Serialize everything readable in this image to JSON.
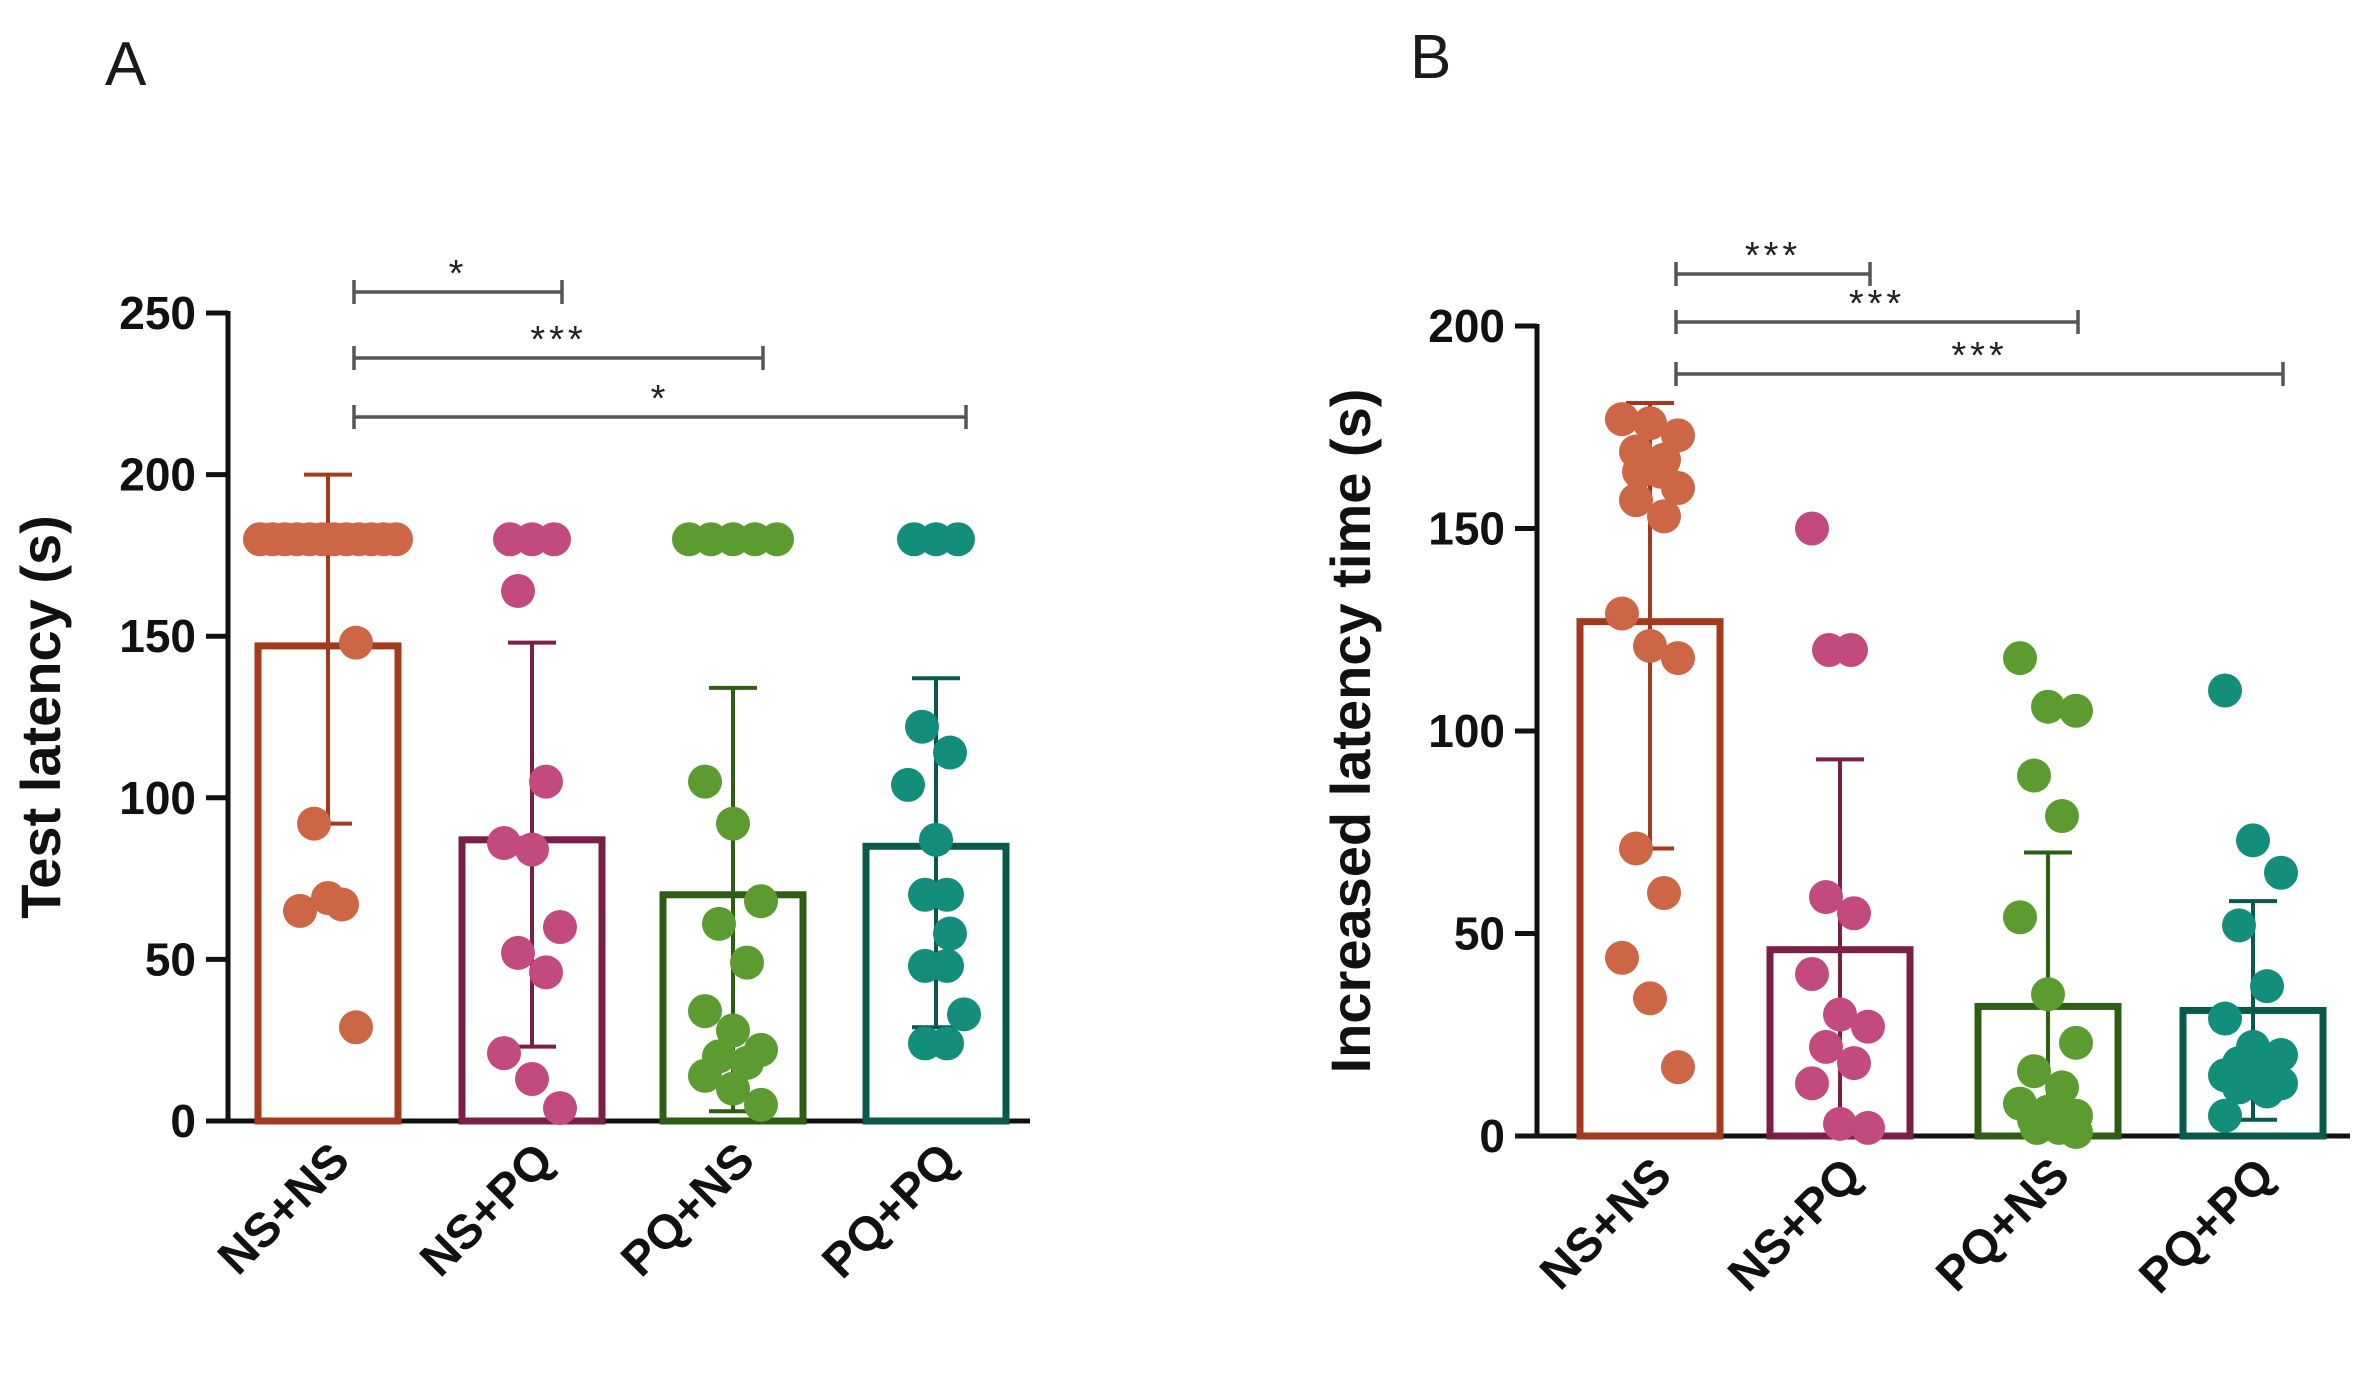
{
  "panels": [
    {
      "letter": "A",
      "chart_data": {
        "type": "bar",
        "categories": [
          "NS+NS",
          "NS+PQ",
          "PQ+NS",
          "PQ+PQ"
        ],
        "ylabel": "Test latency (s)",
        "ylim": [
          0,
          250
        ],
        "yticks": [
          0,
          50,
          100,
          150,
          200,
          250
        ],
        "grid": false,
        "bars": [
          {
            "category": "NS+NS",
            "mean": 147,
            "sd_low": 92,
            "sd_high": 200,
            "color": "#a33a1e",
            "point_color": "#cc6644",
            "points": [
              180,
              180,
              180,
              180,
              180,
              180,
              180,
              180,
              180,
              180,
              180,
              180,
              148,
              92,
              67,
              65,
              69,
              29
            ]
          },
          {
            "category": "NS+PQ",
            "mean": 87,
            "sd_low": 23,
            "sd_high": 148,
            "color": "#7a1f48",
            "point_color": "#c24a7e",
            "points": [
              180,
              180,
              180,
              164,
              105,
              86,
              84,
              60,
              52,
              46,
              21,
              13,
              4
            ]
          },
          {
            "category": "PQ+NS",
            "mean": 70,
            "sd_low": 3,
            "sd_high": 134,
            "color": "#2e5d14",
            "point_color": "#5b9b2f",
            "points": [
              180,
              180,
              180,
              180,
              180,
              105,
              92,
              68,
              61,
              49,
              34,
              28,
              22,
              20,
              18,
              14,
              10,
              5
            ]
          },
          {
            "category": "PQ+PQ",
            "mean": 85,
            "sd_low": 29,
            "sd_high": 137,
            "color": "#0a5a4c",
            "point_color": "#138e7a",
            "points": [
              180,
              180,
              180,
              122,
              114,
              104,
              87,
              70,
              70,
              58,
              48,
              48,
              33,
              24,
              24
            ]
          }
        ],
        "significance": [
          {
            "from": "NS+NS",
            "to": "NS+PQ",
            "label": "*"
          },
          {
            "from": "NS+NS",
            "to": "PQ+NS",
            "label": "***"
          },
          {
            "from": "NS+NS",
            "to": "PQ+PQ",
            "label": "*"
          }
        ]
      }
    },
    {
      "letter": "B",
      "chart_data": {
        "type": "bar",
        "categories": [
          "NS+NS",
          "NS+PQ",
          "PQ+NS",
          "PQ+PQ"
        ],
        "ylabel": "Increased latency time (s)",
        "ylim": [
          0,
          200
        ],
        "yticks": [
          0,
          50,
          100,
          150,
          200
        ],
        "grid": false,
        "bars": [
          {
            "category": "NS+NS",
            "mean": 127,
            "sd_low": 71,
            "sd_high": 181,
            "color": "#a33a1e",
            "point_color": "#cc6644",
            "points": [
              177,
              176,
              173,
              169,
              167,
              164,
              164,
              160,
              157,
              153,
              129,
              121,
              118,
              71,
              60,
              44,
              34,
              17
            ]
          },
          {
            "category": "NS+PQ",
            "mean": 46,
            "sd_low": 0,
            "sd_high": 93,
            "color": "#7a1f48",
            "point_color": "#c24a7e",
            "points": [
              150,
              120,
              120,
              59,
              55,
              40,
              30,
              27,
              22,
              18,
              13,
              3,
              2
            ]
          },
          {
            "category": "PQ+NS",
            "mean": 32,
            "sd_low": 0,
            "sd_high": 70,
            "color": "#2e5d14",
            "point_color": "#5b9b2f",
            "points": [
              118,
              106,
              105,
              89,
              79,
              54,
              35,
              23,
              16,
              12,
              8,
              6,
              5,
              4,
              3,
              2,
              2,
              1
            ]
          },
          {
            "category": "PQ+PQ",
            "mean": 31,
            "sd_low": 4,
            "sd_high": 58,
            "color": "#0a5a4c",
            "point_color": "#138e7a",
            "points": [
              110,
              73,
              65,
              52,
              37,
              29,
              22,
              20,
              18,
              16,
              15,
              14,
              13,
              12,
              11,
              5
            ]
          }
        ],
        "significance": [
          {
            "from": "NS+NS",
            "to": "NS+PQ",
            "label": "***"
          },
          {
            "from": "NS+NS",
            "to": "PQ+NS",
            "label": "***"
          },
          {
            "from": "NS+NS",
            "to": "PQ+PQ",
            "label": "***"
          }
        ]
      }
    }
  ]
}
